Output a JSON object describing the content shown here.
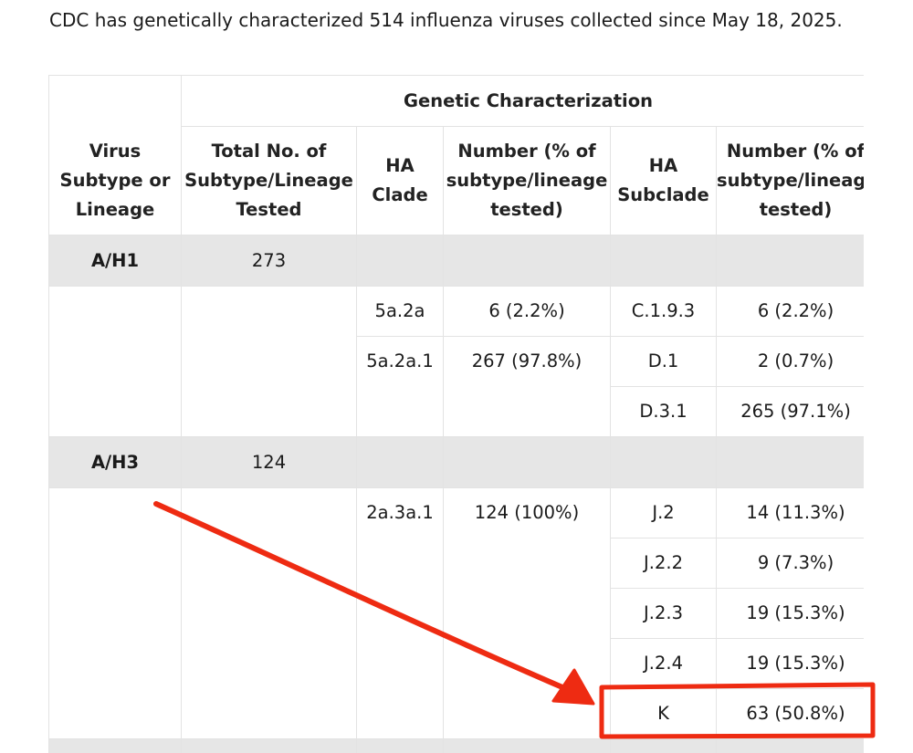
{
  "intro_text": "CDC has genetically characterized 514 influenza viruses collected since May 18, 2025.",
  "table": {
    "group_header": "Genetic Characterization",
    "headers": {
      "subtype_l1": "Virus",
      "subtype_l2": "Subtype or",
      "subtype_l3": "Lineage",
      "total_l1": "Total No. of",
      "total_l2": "Subtype/Lineage",
      "total_l3": "Tested",
      "clade_l1": "HA",
      "clade_l2": "Clade",
      "clade_num_l1": "Number (% of",
      "clade_num_l2": "subtype/lineage",
      "clade_num_l3": "tested)",
      "subclade_l1": "HA",
      "subclade_l2": "Subclade",
      "subclade_num_l1": "Number (% of",
      "subclade_num_l2": "subtype/lineage",
      "subclade_num_l3": "tested)"
    },
    "h1": {
      "subtype": "A/H1",
      "total": "273",
      "clade1": "5a.2a",
      "clade1_num": "6 (2.2%)",
      "clade2": "5a.2a.1",
      "clade2_num": "267 (97.8%)",
      "subclades": [
        {
          "name": "C.1.9.3",
          "num": "6 (2.2%)"
        },
        {
          "name": "D.1",
          "num": "2 (0.7%)"
        },
        {
          "name": "D.3.1",
          "num": "265 (97.1%)"
        }
      ]
    },
    "h3": {
      "subtype": "A/H3",
      "total": "124",
      "clade1": "2a.3a.1",
      "clade1_num": "124 (100%)",
      "subclades": [
        {
          "name": "J.2",
          "num": "14 (11.3%)"
        },
        {
          "name": "J.2.2",
          "num": "9 (7.3%)"
        },
        {
          "name": "J.2.3",
          "num": "19 (15.3%)"
        },
        {
          "name": "J.2.4",
          "num": "19 (15.3%)"
        },
        {
          "name": "K",
          "num": "63 (50.8%)"
        }
      ]
    }
  },
  "annotation": {
    "color": "#ee2b12"
  },
  "colors": {
    "grey_row": "#e6e6e6",
    "border": "#e3e3e3"
  }
}
